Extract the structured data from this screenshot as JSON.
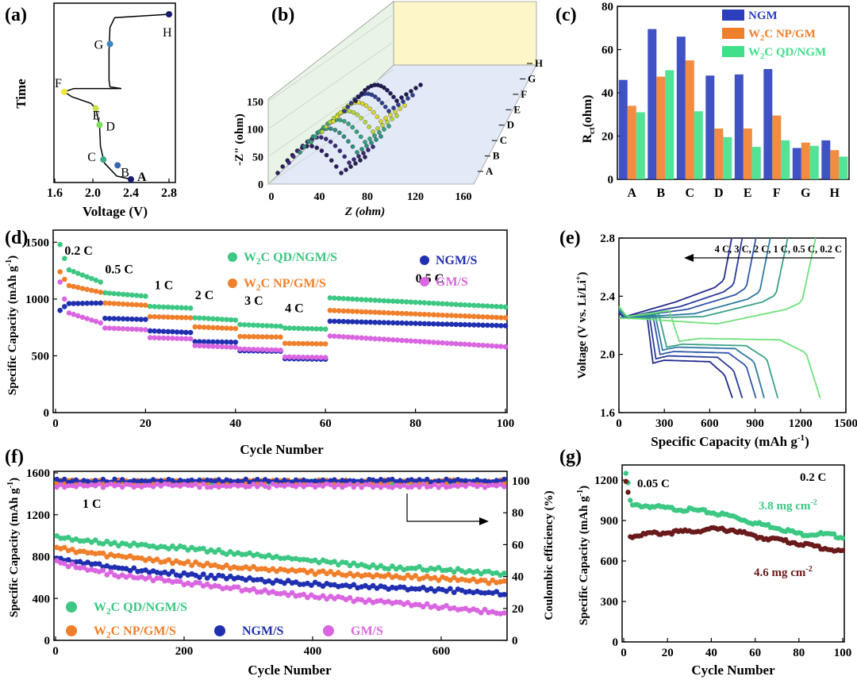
{
  "panels": {
    "a": {
      "label": "(a)",
      "type": "line",
      "xlabel": "Voltage (V)",
      "ylabel": "Time",
      "xlim": [
        1.6,
        2.8
      ],
      "xticks": [
        "1.6",
        "2.0",
        "2.4",
        "2.8"
      ],
      "curve_y_scale": "relative time 0 (bottom) to 1 (top)",
      "curve": [
        [
          2.4,
          0.0
        ],
        [
          2.25,
          0.02
        ],
        [
          2.12,
          0.1
        ],
        [
          2.08,
          0.2
        ],
        [
          2.07,
          0.33
        ],
        [
          2.03,
          0.43
        ],
        [
          1.98,
          0.46
        ],
        [
          1.78,
          0.5
        ],
        [
          1.7,
          0.53
        ],
        [
          1.8,
          0.55
        ],
        [
          2.05,
          0.55
        ],
        [
          2.3,
          0.55
        ],
        [
          2.18,
          0.56
        ],
        [
          2.17,
          0.6
        ],
        [
          2.17,
          0.78
        ],
        [
          2.18,
          0.92
        ],
        [
          2.23,
          0.98
        ],
        [
          2.8,
          1.0
        ]
      ],
      "points": [
        {
          "name": "A",
          "v": 2.4,
          "t": 0.0,
          "color": "#1a1a6e"
        },
        {
          "name": "B",
          "v": 2.26,
          "t": 0.085,
          "color": "#3465b0"
        },
        {
          "name": "C",
          "v": 2.11,
          "t": 0.12,
          "color": "#3ba88a"
        },
        {
          "name": "D",
          "v": 2.07,
          "t": 0.33,
          "color": "#7ddc5c"
        },
        {
          "name": "E",
          "v": 2.03,
          "t": 0.43,
          "color": "#c7e04a"
        },
        {
          "name": "F",
          "v": 1.7,
          "t": 0.53,
          "color": "#f2e83a"
        },
        {
          "name": "G",
          "v": 2.18,
          "t": 0.82,
          "color": "#3d86c2"
        },
        {
          "name": "H",
          "v": 2.8,
          "t": 1.0,
          "color": "#1a1a6e"
        }
      ]
    },
    "b": {
      "label": "(b)",
      "type": "scatter-3d",
      "xlabel": "Z (ohm)",
      "ylabel": "-Z\" (ohm)",
      "xticks": [
        "0",
        "40",
        "80",
        "120",
        "160"
      ],
      "yticks": [
        "0",
        "50",
        "100",
        "150"
      ],
      "depth_labels": [
        "A",
        "B",
        "C",
        "D",
        "E",
        "F",
        "G",
        "H"
      ],
      "series_colors": [
        "#2b1f5e",
        "#3b2a7a",
        "#2f8f80",
        "#3aa37f",
        "#b8d83a",
        "#d9d92e",
        "#2f3f8f",
        "#221a55"
      ]
    },
    "c": {
      "label": "(c)",
      "type": "bar",
      "ylabel": "R",
      "ylabel_sub": "ct",
      "ylabel_unit": "(ohm)",
      "categories": [
        "A",
        "B",
        "C",
        "D",
        "E",
        "F",
        "G",
        "H"
      ],
      "ylim": [
        0,
        80
      ],
      "yticks": [
        "0",
        "20",
        "40",
        "60",
        "80"
      ],
      "series": [
        {
          "name": "NGM",
          "color": "#2b3fbe",
          "values": [
            46,
            69.5,
            66,
            48,
            48.5,
            51,
            14.5,
            18
          ]
        },
        {
          "name": "W2C NP/GM",
          "color": "#f07f2b",
          "values": [
            34,
            47.5,
            55,
            23.5,
            23.5,
            29.5,
            17,
            13.5
          ]
        },
        {
          "name": "W2C QD/NGM",
          "color": "#3fe089",
          "values": [
            31,
            50.5,
            31.5,
            19.5,
            15,
            18,
            15.5,
            10.5
          ]
        }
      ],
      "legend": [
        {
          "pre": "NGM",
          "sub": "",
          "post": ""
        },
        {
          "pre": "W",
          "sub": "2",
          "post": "C NP/GM"
        },
        {
          "pre": "W",
          "sub": "2",
          "post": "C QD/NGM"
        }
      ]
    },
    "d": {
      "label": "(d)",
      "type": "scatter",
      "xlabel": "Cycle Number",
      "ylabel": "Specific Capacity (mAh g",
      "ylabel_sup": "-1",
      "ylabel_end": ")",
      "xlim": [
        0,
        100
      ],
      "ylim": [
        0,
        1600
      ],
      "xticks": [
        "0",
        "20",
        "40",
        "60",
        "80",
        "100"
      ],
      "yticks": [
        "0",
        "500",
        "1000",
        "1500"
      ],
      "rates": [
        {
          "text": "0.2 C",
          "cycle": 2,
          "cap": 1390
        },
        {
          "text": "0.5 C",
          "cycle": 11,
          "cap": 1225
        },
        {
          "text": "1 C",
          "cycle": 22,
          "cap": 1085
        },
        {
          "text": "2 C",
          "cycle": 31,
          "cap": 1000
        },
        {
          "text": "3 C",
          "cycle": 42,
          "cap": 950
        },
        {
          "text": "4 C",
          "cycle": 51,
          "cap": 885
        },
        {
          "text": "0.5 C",
          "cycle": 80,
          "cap": 1145
        }
      ],
      "series": [
        {
          "name": "W2C QD/NGM/S",
          "pre": "W",
          "sub": "2",
          "post": "C QD/NGM/S",
          "color": "#3cc782",
          "segments": [
            [
              1480,
              1260,
              1150
            ],
            [
              1055,
              1025
            ],
            [
              935,
              920
            ],
            [
              835,
              815
            ],
            [
              775,
              760
            ],
            [
              745,
              735
            ],
            [
              1010,
              930
            ]
          ]
        },
        {
          "name": "W2C NP/GM/S",
          "pre": "W",
          "sub": "2",
          "post": "C NP/GM/S",
          "color": "#f07f2b",
          "segments": [
            [
              1240,
              1120,
              1060
            ],
            [
              965,
              945
            ],
            [
              845,
              835
            ],
            [
              755,
              740
            ],
            [
              670,
              665
            ],
            [
              610,
              605
            ],
            [
              900,
              835
            ]
          ]
        },
        {
          "name": "NGM/S",
          "pre": "NGM/S",
          "sub": "",
          "post": "",
          "color": "#1f2fb0",
          "segments": [
            [
              900,
              960,
              965
            ],
            [
              830,
              820
            ],
            [
              720,
              705
            ],
            [
              625,
              620
            ],
            [
              545,
              540
            ],
            [
              475,
              470
            ],
            [
              805,
              765
            ]
          ]
        },
        {
          "name": "GM/S",
          "pre": "GM/S",
          "sub": "",
          "post": "",
          "color": "#d966e0",
          "segments": [
            [
              1150,
              880,
              790
            ],
            [
              745,
              730
            ],
            [
              660,
              650
            ],
            [
              590,
              575
            ],
            [
              560,
              550
            ],
            [
              490,
              485
            ],
            [
              675,
              580
            ]
          ]
        }
      ]
    },
    "e": {
      "label": "(e)",
      "type": "line",
      "xlabel": "Specific Capacity (mAh g",
      "xlabel_sup": "-1",
      "xlabel_end": ")",
      "ylabel": "Voltage (V vs. Li/Li",
      "ylabel_sup": "+",
      "ylabel_end": ")",
      "xlim": [
        0,
        1500
      ],
      "ylim": [
        1.6,
        2.8
      ],
      "xticks": [
        "0",
        "300",
        "600",
        "900",
        "1200",
        "1500"
      ],
      "yticks": [
        "1.6",
        "2.0",
        "2.4",
        "2.8"
      ],
      "arrow_label": "4 C,  3 C,  2 C,  1 C,  0.5 C,  0.2 C",
      "series": [
        {
          "name": "4 C",
          "color": "#232a8c",
          "discharge_end": 750,
          "charge_end": 745,
          "plateau_low": 1.94,
          "plateau_high": 2.46,
          "start": 2.3
        },
        {
          "name": "3 C",
          "color": "#283a9e",
          "discharge_end": 815,
          "charge_end": 815,
          "plateau_low": 1.97,
          "plateau_high": 2.43,
          "start": 2.3
        },
        {
          "name": "2 C",
          "color": "#2f56a8",
          "discharge_end": 905,
          "charge_end": 905,
          "plateau_low": 2.0,
          "plateau_high": 2.41,
          "start": 2.31
        },
        {
          "name": "1 C",
          "color": "#2f79a2",
          "discharge_end": 960,
          "charge_end": 1000,
          "plateau_low": 2.03,
          "plateau_high": 2.38,
          "start": 2.32
        },
        {
          "name": "0.5 C",
          "color": "#3aa088",
          "discharge_end": 1050,
          "charge_end": 1115,
          "plateau_low": 2.05,
          "plateau_high": 2.36,
          "start": 2.33
        },
        {
          "name": "0.2 C",
          "color": "#6fe07a",
          "discharge_end": 1330,
          "charge_end": 1300,
          "plateau_low": 2.09,
          "plateau_high": 2.31,
          "start": 2.35
        }
      ]
    },
    "f": {
      "label": "(f)",
      "type": "scatter",
      "xlabel": "Cycle Number",
      "ylabel": "Specific Capacity (mAh g",
      "ylabel_sup": "-1",
      "ylabel_end": ")",
      "y2label": "Coulombic efficiency (%)",
      "xlim": [
        0,
        700
      ],
      "ylim": [
        0,
        1600
      ],
      "y2lim": [
        0,
        105
      ],
      "xticks": [
        "0",
        "200",
        "400",
        "600"
      ],
      "yticks": [
        "0",
        "400",
        "800",
        "1200",
        "1600"
      ],
      "y2ticks": [
        "0",
        "20",
        "40",
        "60",
        "80",
        "100"
      ],
      "rate": "1 C",
      "series": [
        {
          "name": "W2C QD/NGM/S",
          "pre": "W",
          "sub": "2",
          "post": "C QD/NGM/S",
          "color": "#3cc782",
          "cap": [
            [
              0,
              1000
            ],
            [
              20,
              970
            ],
            [
              100,
              920
            ],
            [
              200,
              880
            ],
            [
              300,
              820
            ],
            [
              400,
              760
            ],
            [
              500,
              700
            ],
            [
              600,
              680
            ],
            [
              700,
              630
            ]
          ],
          "ce": 99
        },
        {
          "name": "W2C NP/GM/S",
          "pre": "W",
          "sub": "2",
          "post": "C NP/GM/S",
          "color": "#f07f2b",
          "cap": [
            [
              0,
              900
            ],
            [
              20,
              860
            ],
            [
              100,
              800
            ],
            [
              200,
              740
            ],
            [
              300,
              690
            ],
            [
              400,
              650
            ],
            [
              500,
              620
            ],
            [
              600,
              590
            ],
            [
              700,
              550
            ]
          ],
          "ce": 99.5
        },
        {
          "name": "NGM/S",
          "pre": "NGM/S",
          "sub": "",
          "post": "",
          "color": "#1f2fb0",
          "cap": [
            [
              0,
              780
            ],
            [
              20,
              760
            ],
            [
              100,
              690
            ],
            [
              200,
              630
            ],
            [
              300,
              580
            ],
            [
              400,
              540
            ],
            [
              500,
              510
            ],
            [
              600,
              480
            ],
            [
              700,
              450
            ]
          ],
          "ce": 100
        },
        {
          "name": "GM/S",
          "pre": "GM/S",
          "sub": "",
          "post": "",
          "color": "#d966e0",
          "cap": [
            [
              0,
              760
            ],
            [
              20,
              720
            ],
            [
              100,
              620
            ],
            [
              200,
              550
            ],
            [
              300,
              480
            ],
            [
              400,
              420
            ],
            [
              500,
              370
            ],
            [
              600,
              320
            ],
            [
              700,
              260
            ]
          ],
          "ce": 97
        }
      ]
    },
    "g": {
      "label": "(g)",
      "type": "scatter",
      "xlabel": "Cycle Number",
      "ylabel": "Specific Capacity (mAh g",
      "ylabel_sup": "-1",
      "ylabel_end": ")",
      "xlim": [
        0,
        100
      ],
      "ylim": [
        0,
        1300
      ],
      "xticks": [
        "0",
        "20",
        "40",
        "60",
        "80",
        "100"
      ],
      "yticks": [
        "0",
        "300",
        "600",
        "900",
        "1200"
      ],
      "rate_low": "0.05 C",
      "rate_high": "0.2 C",
      "series": [
        {
          "name": "3.8 mg cm-2",
          "pre": "3.8 mg cm",
          "sup": "-2",
          "color": "#3cc782",
          "cap": [
            [
              1,
              1250
            ],
            [
              2,
              1180
            ],
            [
              3,
              1050
            ],
            [
              4,
              1010
            ],
            [
              10,
              1010
            ],
            [
              20,
              990
            ],
            [
              30,
              980
            ],
            [
              40,
              960
            ],
            [
              50,
              930
            ],
            [
              60,
              880
            ],
            [
              70,
              850
            ],
            [
              80,
              800
            ],
            [
              90,
              800
            ],
            [
              100,
              780
            ]
          ]
        },
        {
          "name": "4.6 mg cm-2",
          "pre": "4.6 mg cm",
          "sup": "-2",
          "color": "#6a1a1a",
          "cap": [
            [
              1,
              1190
            ],
            [
              2,
              1110
            ],
            [
              3,
              780
            ],
            [
              10,
              800
            ],
            [
              20,
              810
            ],
            [
              30,
              820
            ],
            [
              40,
              835
            ],
            [
              50,
              830
            ],
            [
              60,
              780
            ],
            [
              70,
              760
            ],
            [
              80,
              730
            ],
            [
              90,
              700
            ],
            [
              100,
              670
            ]
          ]
        }
      ]
    }
  }
}
